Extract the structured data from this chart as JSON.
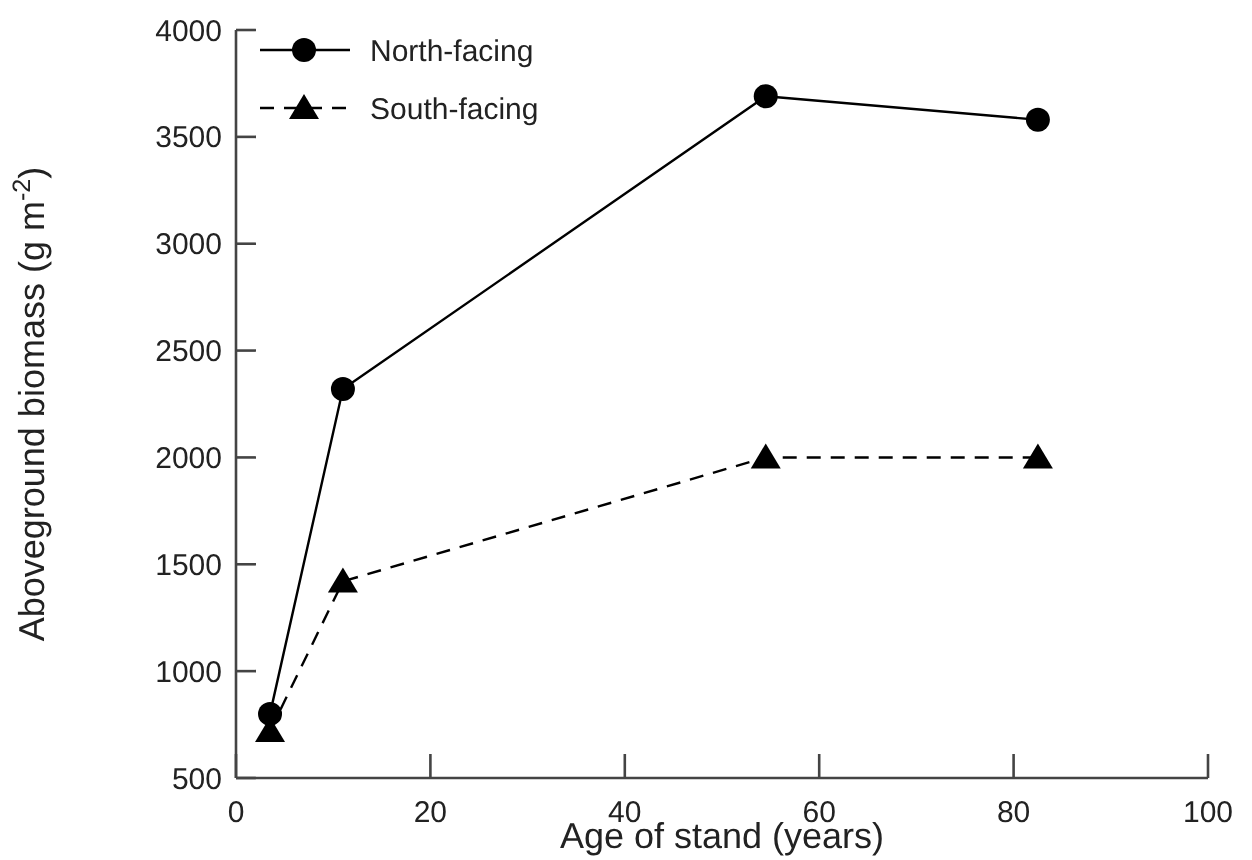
{
  "chart_data": {
    "type": "line",
    "xlabel": "Age of stand (years)",
    "ylabel": "Aboveground biomass (g m$^{-2}$)",
    "xlim": [
      0,
      100
    ],
    "xticks": [
      0,
      20,
      40,
      60,
      80,
      100
    ],
    "ylim": [
      500,
      4000
    ],
    "yticks": [
      500,
      1000,
      1500,
      2000,
      2500,
      3000,
      3500,
      4000
    ],
    "grid": false,
    "legend": "top left",
    "series": [
      {
        "name": "North-facing",
        "color": "#000000",
        "x": [
          3.5,
          11,
          54.5,
          82.5
        ],
        "values": [
          800,
          2320,
          3690,
          3580
        ],
        "marker": "circle",
        "line_style": "solid"
      },
      {
        "name": "South-facing",
        "color": "#000000",
        "x": [
          3.5,
          11,
          54.5,
          82.5
        ],
        "values": [
          720,
          1420,
          2000,
          2000
        ],
        "marker": "triangle",
        "line_style": "dashed"
      }
    ]
  }
}
